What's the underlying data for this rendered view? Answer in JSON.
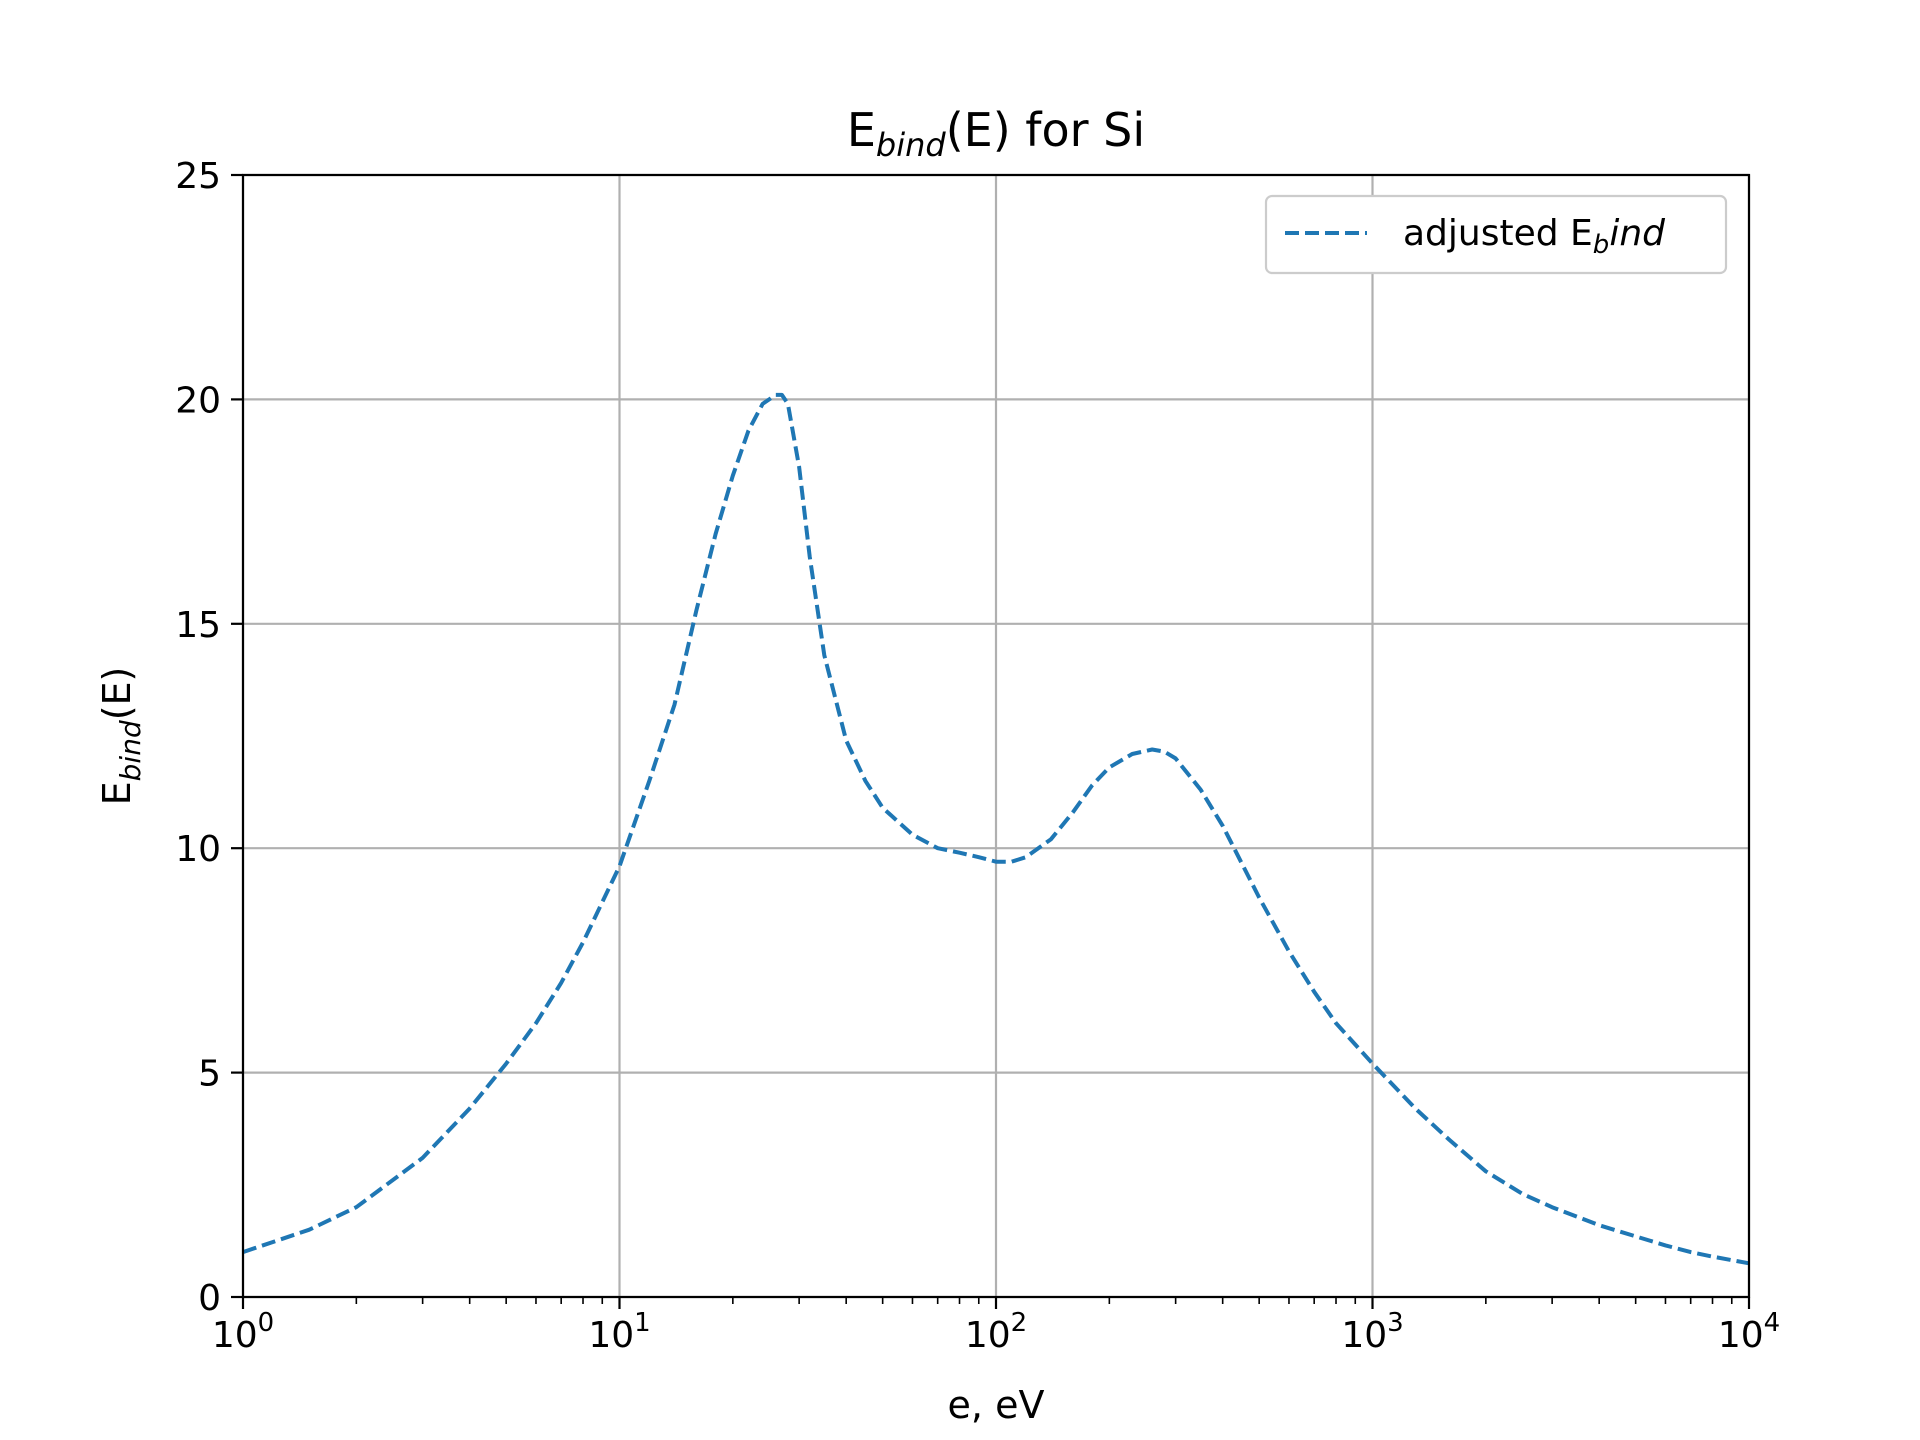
{
  "colors": {
    "series": "#1f77b4",
    "grid": "#b0b0b0"
  },
  "chart_data": {
    "type": "line",
    "title": {
      "main": "E",
      "sub": "bind",
      "rest": "(E) for Si"
    },
    "xlabel": "e, eV",
    "ylabel": {
      "main": "E",
      "sub": "bind",
      "rest": "(E)"
    },
    "xscale": "log",
    "xlim": [
      1,
      10000
    ],
    "ylim": [
      0,
      25
    ],
    "grid": true,
    "legend_position": "top-right",
    "x_ticks": [
      {
        "value": 1,
        "base": "10",
        "exp": "0"
      },
      {
        "value": 10,
        "base": "10",
        "exp": "1"
      },
      {
        "value": 100,
        "base": "10",
        "exp": "2"
      },
      {
        "value": 1000,
        "base": "10",
        "exp": "3"
      },
      {
        "value": 10000,
        "base": "10",
        "exp": "4"
      }
    ],
    "y_ticks": [
      {
        "value": 0,
        "label": "0"
      },
      {
        "value": 5,
        "label": "5"
      },
      {
        "value": 10,
        "label": "10"
      },
      {
        "value": 15,
        "label": "15"
      },
      {
        "value": 20,
        "label": "20"
      },
      {
        "value": 25,
        "label": "25"
      }
    ],
    "series": [
      {
        "name": {
          "main": "adjusted E",
          "sub": "b",
          "italic": "ind"
        },
        "style": "dashed",
        "x": [
          1,
          1.5,
          2,
          3,
          4,
          5,
          6,
          7,
          8,
          9,
          10,
          12,
          14,
          16,
          18,
          20,
          22,
          24,
          26,
          27,
          28,
          30,
          32,
          35,
          40,
          45,
          50,
          60,
          70,
          80,
          90,
          100,
          110,
          120,
          140,
          160,
          180,
          200,
          230,
          260,
          280,
          300,
          350,
          400,
          500,
          600,
          700,
          800,
          1000,
          1300,
          1600,
          2000,
          2500,
          3000,
          4000,
          5000,
          6000,
          7000,
          8000,
          10000
        ],
        "y": [
          1.0,
          1.5,
          2.0,
          3.1,
          4.2,
          5.2,
          6.1,
          7.0,
          7.9,
          8.8,
          9.6,
          11.5,
          13.2,
          15.3,
          17.0,
          18.3,
          19.3,
          19.9,
          20.1,
          20.1,
          19.9,
          18.5,
          16.5,
          14.3,
          12.4,
          11.5,
          10.9,
          10.3,
          10.0,
          9.9,
          9.8,
          9.7,
          9.7,
          9.8,
          10.2,
          10.8,
          11.4,
          11.8,
          12.1,
          12.2,
          12.15,
          12.0,
          11.3,
          10.5,
          8.9,
          7.7,
          6.8,
          6.1,
          5.2,
          4.2,
          3.5,
          2.8,
          2.3,
          2.0,
          1.6,
          1.35,
          1.15,
          1.0,
          0.9,
          0.75
        ]
      }
    ]
  }
}
